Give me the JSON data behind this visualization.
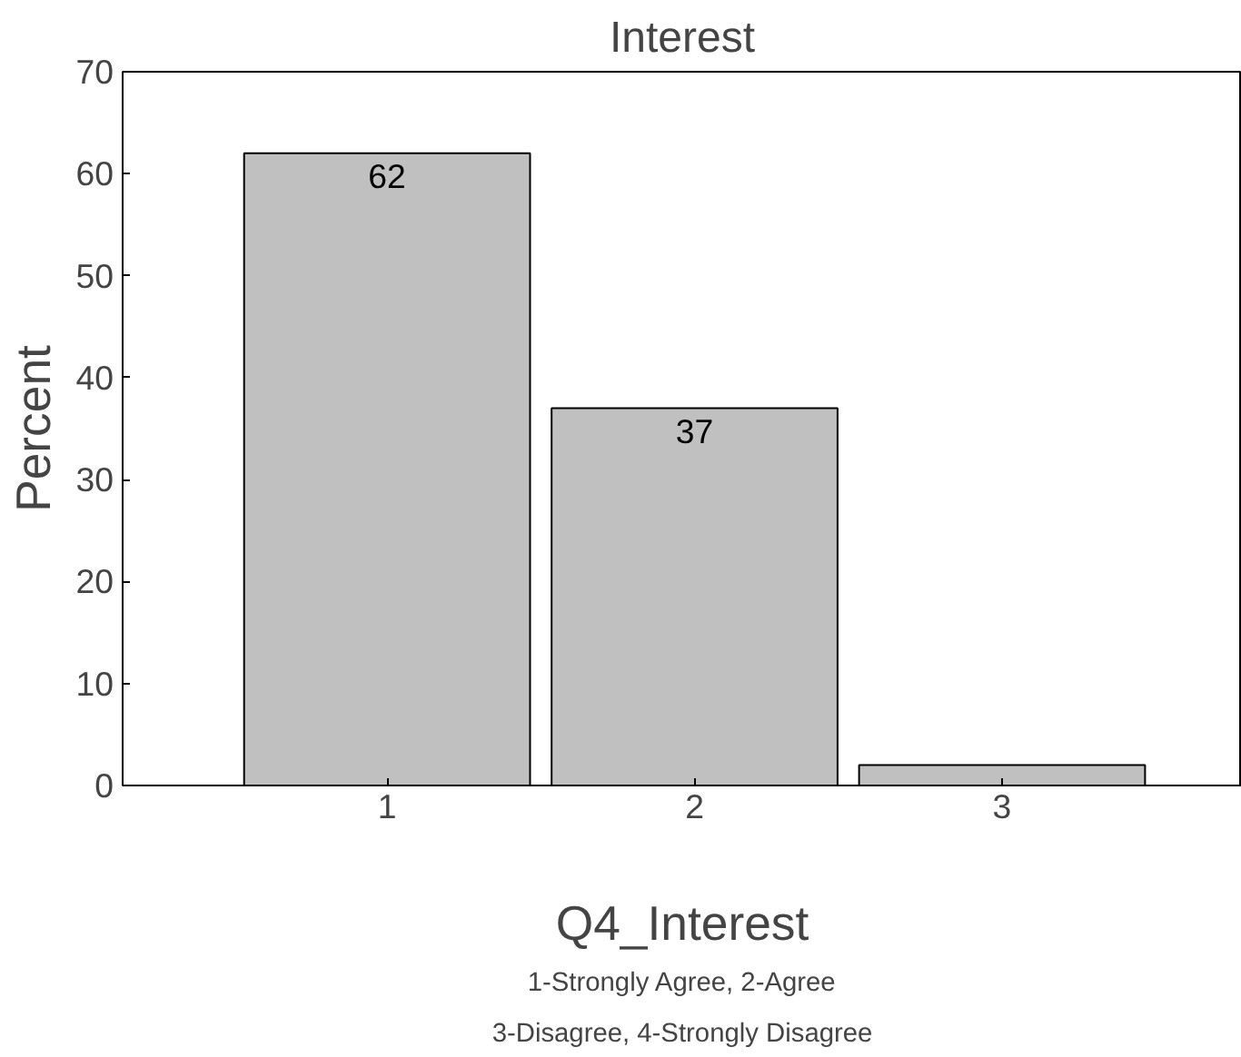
{
  "chart_data": {
    "type": "bar",
    "title": "Interest",
    "xlabel": "Q4_Interest",
    "ylabel": "Percent",
    "categories": [
      "1",
      "2",
      "3"
    ],
    "values": [
      62,
      37,
      2
    ],
    "value_labels": [
      "62",
      "37",
      null
    ],
    "color": "#c0c0c0",
    "ylim": [
      0,
      70
    ],
    "yticks": [
      0,
      10,
      20,
      30,
      40,
      50,
      60,
      70
    ],
    "grid": false,
    "annotations": [
      "1-Strongly Agree, 2-Agree",
      "3-Disagree, 4-Strongly Disagree"
    ]
  }
}
